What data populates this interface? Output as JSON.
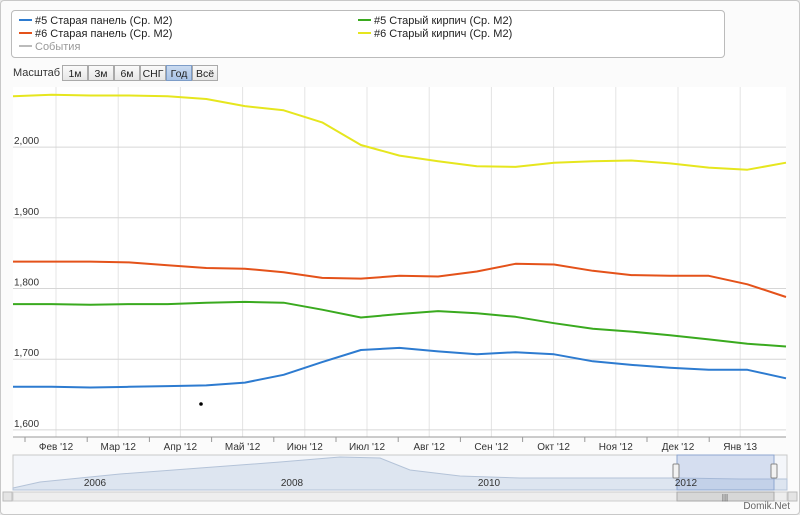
{
  "legend": [
    {
      "label": "#5 Старая панель (Ср. М2)",
      "color": "#2d7bd0"
    },
    {
      "label": "#5 Старый кирпич (Ср. М2)",
      "color": "#3aaa1f"
    },
    {
      "label": "#6 Старая панель (Ср. М2)",
      "color": "#e4521a"
    },
    {
      "label": "#6 Старый кирпич (Ср. М2)",
      "color": "#e6e61e"
    },
    {
      "label": "События",
      "color": "#bbbbbb"
    }
  ],
  "zoom": {
    "label": "Масштаб",
    "buttons": [
      "1м",
      "3м",
      "6м",
      "СНГ",
      "Год",
      "Всё"
    ],
    "active": "Год"
  },
  "watermark": "Domik.net",
  "credit": "Domik.Net",
  "chart_data": {
    "type": "line",
    "x_tick_labels": [
      "Фев '12",
      "Мар '12",
      "Апр '12",
      "Май '12",
      "Июн '12",
      "Июл '12",
      "Авг '12",
      "Сен '12",
      "Окт '12",
      "Ноя '12",
      "Дек '12",
      "Янв '13"
    ],
    "y_tick_labels": [
      "1,600",
      "1,700",
      "1,800",
      "1,900",
      "2,000"
    ],
    "ylim": [
      1590,
      2085
    ],
    "series": [
      {
        "name": "#6 Старый кирпич (Ср. М2)",
        "color": "#e6e61e",
        "values": [
          2072,
          2074,
          2073,
          2073,
          2072,
          2068,
          2058,
          2052,
          2035,
          2003,
          1988,
          1980,
          1973,
          1972,
          1978,
          1980,
          1981,
          1977,
          1971,
          1968,
          1978
        ]
      },
      {
        "name": "#6 Старая панель (Ср. М2)",
        "color": "#e4521a",
        "values": [
          1838,
          1838,
          1838,
          1837,
          1833,
          1829,
          1828,
          1823,
          1815,
          1814,
          1818,
          1817,
          1824,
          1835,
          1834,
          1825,
          1819,
          1818,
          1818,
          1806,
          1788
        ]
      },
      {
        "name": "#5 Старый кирпич (Ср. М2)",
        "color": "#3aaa1f",
        "values": [
          1778,
          1778,
          1777,
          1778,
          1778,
          1780,
          1781,
          1780,
          1770,
          1759,
          1764,
          1768,
          1765,
          1760,
          1751,
          1743,
          1739,
          1734,
          1728,
          1722,
          1718
        ]
      },
      {
        "name": "#5 Старая панель (Ср. М2)",
        "color": "#2d7bd0",
        "values": [
          1661,
          1661,
          1660,
          1661,
          1662,
          1663,
          1667,
          1678,
          1696,
          1713,
          1716,
          1711,
          1707,
          1710,
          1707,
          1697,
          1692,
          1688,
          1685,
          1685,
          1673
        ]
      }
    ]
  },
  "navigator": {
    "year_labels": [
      "2006",
      "2008",
      "2010",
      "2012"
    ],
    "scrollbar_label": "|||"
  }
}
